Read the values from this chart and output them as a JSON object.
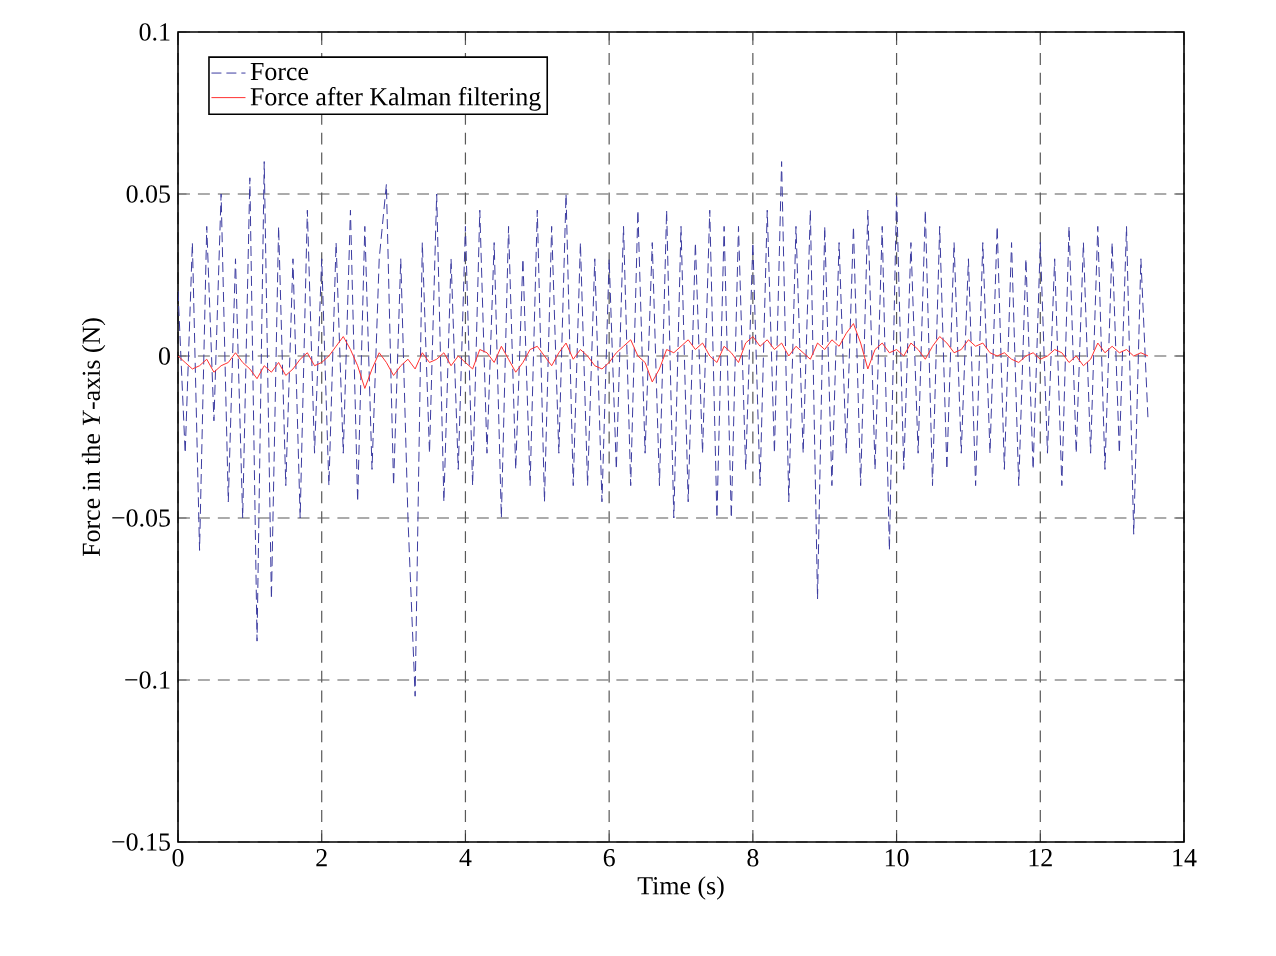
{
  "chart_data": {
    "type": "line",
    "xlabel": "Time (s)",
    "ylabel": "Force in the *Y*-axis (N)",
    "x": [
      0,
      0.1,
      0.2,
      0.3,
      0.4,
      0.5,
      0.6,
      0.7,
      0.8,
      0.9,
      1,
      1.1,
      1.2,
      1.3,
      1.4,
      1.5,
      1.6,
      1.7,
      1.8,
      1.9,
      2,
      2.1,
      2.2,
      2.3,
      2.4,
      2.5,
      2.6,
      2.7,
      2.8,
      2.9,
      3,
      3.1,
      3.2,
      3.3,
      3.4,
      3.5,
      3.6,
      3.7,
      3.8,
      3.9,
      4,
      4.1,
      4.2,
      4.3,
      4.4,
      4.5,
      4.6,
      4.7,
      4.8,
      4.9,
      5,
      5.1,
      5.2,
      5.3,
      5.4,
      5.5,
      5.6,
      5.7,
      5.8,
      5.9,
      6,
      6.1,
      6.2,
      6.3,
      6.4,
      6.5,
      6.6,
      6.7,
      6.8,
      6.9,
      7,
      7.1,
      7.2,
      7.3,
      7.4,
      7.5,
      7.6,
      7.7,
      7.8,
      7.9,
      8,
      8.1,
      8.2,
      8.3,
      8.4,
      8.5,
      8.6,
      8.7,
      8.8,
      8.9,
      9,
      9.1,
      9.2,
      9.3,
      9.4,
      9.5,
      9.6,
      9.7,
      9.8,
      9.9,
      10,
      10.1,
      10.2,
      10.3,
      10.4,
      10.5,
      10.6,
      10.7,
      10.8,
      10.9,
      11,
      11.1,
      11.2,
      11.3,
      11.4,
      11.5,
      11.6,
      11.7,
      11.8,
      11.9,
      12,
      12.1,
      12.2,
      12.3,
      12.4,
      12.5,
      12.6,
      12.7,
      12.8,
      12.9,
      13,
      13.1,
      13.2,
      13.3,
      13.4,
      13.5
    ],
    "series": [
      {
        "name": "Force",
        "color": "#3a3aa0",
        "line_style": "dashed",
        "values": [
          0.02,
          -0.03,
          0.035,
          -0.06,
          0.04,
          -0.02,
          0.05,
          -0.045,
          0.03,
          -0.05,
          0.055,
          -0.088,
          0.06,
          -0.075,
          0.04,
          -0.04,
          0.03,
          -0.05,
          0.045,
          -0.03,
          0.03,
          -0.04,
          0.035,
          -0.03,
          0.045,
          -0.045,
          0.04,
          -0.035,
          0.03,
          0.053,
          -0.04,
          0.03,
          -0.05,
          -0.105,
          0.035,
          -0.03,
          0.05,
          -0.045,
          0.03,
          -0.035,
          0.04,
          -0.04,
          0.045,
          -0.03,
          0.035,
          -0.05,
          0.04,
          -0.035,
          0.03,
          -0.04,
          0.045,
          -0.045,
          0.04,
          -0.03,
          0.05,
          -0.04,
          0.035,
          -0.04,
          0.03,
          -0.045,
          0.03,
          -0.035,
          0.04,
          -0.04,
          0.045,
          -0.03,
          0.035,
          -0.04,
          0.045,
          -0.05,
          0.04,
          -0.045,
          0.035,
          -0.03,
          0.045,
          -0.05,
          0.04,
          -0.05,
          0.04,
          -0.035,
          0.035,
          -0.04,
          0.045,
          -0.03,
          0.06,
          -0.045,
          0.04,
          -0.03,
          0.045,
          -0.075,
          0.04,
          -0.04,
          0.035,
          -0.03,
          0.04,
          -0.04,
          0.045,
          -0.035,
          0.04,
          -0.06,
          0.05,
          -0.035,
          0.035,
          -0.03,
          0.045,
          -0.04,
          0.04,
          -0.035,
          0.035,
          -0.03,
          0.03,
          -0.04,
          0.035,
          -0.03,
          0.04,
          -0.035,
          0.035,
          -0.04,
          0.03,
          -0.035,
          0.035,
          -0.03,
          0.03,
          -0.04,
          0.04,
          -0.03,
          0.035,
          -0.03,
          0.04,
          -0.035,
          0.035,
          -0.03,
          0.04,
          -0.055,
          0.03,
          -0.02
        ]
      },
      {
        "name": "Force after Kalman filtering",
        "color": "#ff3030",
        "line_style": "solid",
        "values": [
          0,
          -0.002,
          -0.004,
          -0.003,
          -0.001,
          -0.005,
          -0.003,
          -0.002,
          0.001,
          -0.002,
          -0.004,
          -0.007,
          -0.003,
          -0.005,
          -0.002,
          -0.006,
          -0.004,
          -0.001,
          0.001,
          -0.003,
          -0.002,
          0,
          0.003,
          0.006,
          0.002,
          -0.003,
          -0.01,
          -0.004,
          0.001,
          -0.002,
          -0.006,
          -0.003,
          -0.001,
          -0.004,
          0.001,
          -0.002,
          -0.001,
          0.001,
          -0.003,
          0,
          -0.002,
          -0.004,
          0.002,
          0.001,
          -0.002,
          0.003,
          -0.001,
          -0.005,
          -0.002,
          0.002,
          0.003,
          0,
          -0.003,
          0.001,
          0.004,
          -0.001,
          0.002,
          0,
          -0.003,
          -0.004,
          -0.002,
          0.001,
          0.003,
          0.005,
          0,
          -0.002,
          -0.008,
          -0.004,
          0.002,
          0.001,
          0.003,
          0.005,
          0.002,
          0.004,
          0,
          -0.002,
          0.003,
          0.001,
          -0.002,
          0.004,
          0.006,
          0.003,
          0.005,
          0.002,
          0.004,
          0,
          0.003,
          0.001,
          -0.001,
          0.004,
          0.002,
          0.005,
          0.003,
          0.007,
          0.01,
          0.004,
          -0.004,
          0.002,
          0.004,
          0.001,
          0.002,
          0,
          0.004,
          0.002,
          -0.001,
          0.003,
          0.006,
          0.004,
          0.001,
          0.002,
          0.005,
          0.003,
          0.004,
          0.001,
          0,
          0.001,
          -0.001,
          -0.002,
          0,
          0.001,
          -0.001,
          0,
          0.002,
          0.001,
          -0.002,
          0,
          -0.003,
          -0.001,
          0.004,
          0.001,
          0.003,
          0.001,
          0.002,
          0,
          0.001,
          0
        ]
      }
    ],
    "xlim": [
      0,
      14
    ],
    "ylim": [
      -0.15,
      0.1
    ],
    "xticks": [
      0,
      2,
      4,
      6,
      8,
      10,
      12,
      14
    ],
    "yticks": [
      {
        "value": -0.15,
        "label": "−0.15"
      },
      {
        "value": -0.1,
        "label": "−0.1"
      },
      {
        "value": -0.05,
        "label": "−0.05"
      },
      0,
      0.05,
      0.1
    ],
    "grid": true,
    "legend": "top left",
    "marker": "none"
  }
}
